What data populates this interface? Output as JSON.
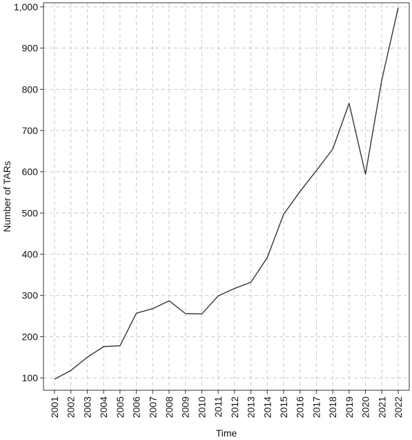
{
  "chart_data": {
    "type": "line",
    "title": "",
    "xlabel": "Time",
    "ylabel": "Number of TARs",
    "x": [
      2001,
      2002,
      2003,
      2004,
      2005,
      2006,
      2007,
      2008,
      2009,
      2010,
      2011,
      2012,
      2013,
      2014,
      2015,
      2016,
      2017,
      2018,
      2019,
      2020,
      2021,
      2022
    ],
    "x_tick_labels": [
      "2001",
      "2002",
      "2003",
      "2004",
      "2005",
      "2006",
      "2007",
      "2008",
      "2009",
      "2010",
      "2011",
      "2012",
      "2013",
      "2014",
      "2015",
      "2016",
      "2017",
      "2018",
      "2019",
      "2020",
      "2021",
      "2022"
    ],
    "values": [
      97,
      118,
      150,
      176,
      178,
      257,
      268,
      287,
      256,
      255,
      299,
      317,
      332,
      392,
      497,
      552,
      603,
      655,
      766,
      594,
      823,
      998
    ],
    "ylim": [
      70,
      1010
    ],
    "y_ticks": [
      100,
      200,
      300,
      400,
      500,
      600,
      700,
      800,
      900,
      1000
    ],
    "y_tick_labels": [
      "100",
      "200",
      "300",
      "400",
      "500",
      "600",
      "700",
      "800",
      "900",
      "1,000"
    ],
    "grid": true,
    "line_color": "#333333",
    "grid_color": "#c8c8c8",
    "axis_color": "#333333"
  }
}
